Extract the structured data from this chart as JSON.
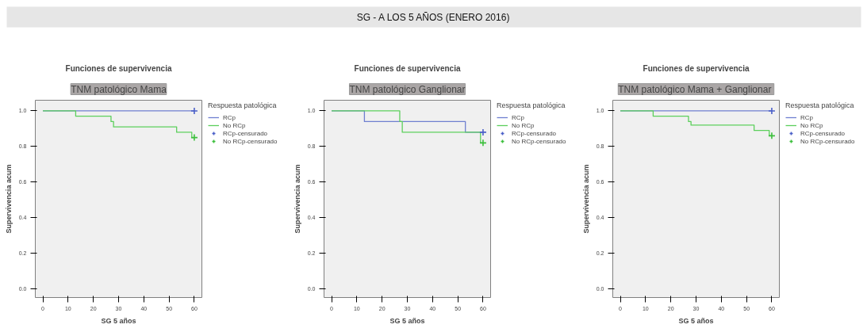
{
  "chart_data": [
    {
      "type": "other",
      "title": "SG - A LOS 5 AÑOS (ENERO 2016)"
    },
    {
      "type": "step",
      "title": "Funciones de supervivencia",
      "subtitle": "TNM patológico Mama",
      "xlabel": "SG 5 años",
      "ylabel": "Supervivencia acum",
      "legend_title": "Respuesta patológica",
      "legend": "right",
      "grid": false,
      "xlim": [
        -3,
        63
      ],
      "ylim": [
        -0.05,
        1.06
      ],
      "xticks": [
        0,
        10,
        20,
        30,
        40,
        50,
        60
      ],
      "yticks": [
        {
          "value": 0,
          "label": "0.0"
        },
        {
          "value": 0.2,
          "label": "0.2"
        },
        {
          "value": 0.4,
          "label": "0.4"
        },
        {
          "value": 0.6,
          "label": "0.6"
        },
        {
          "value": 0.8,
          "label": "0.8"
        },
        {
          "value": 1,
          "label": "1.0"
        }
      ],
      "series": [
        {
          "name": "RCp",
          "color": "#6f7fd0",
          "x": [
            0,
            60
          ],
          "values": [
            1,
            1
          ]
        },
        {
          "name": "No RCp",
          "color": "#5ccf5c",
          "x": [
            0,
            13,
            27,
            28,
            53,
            59,
            60
          ],
          "values": [
            1,
            0.97,
            0.94,
            0.91,
            0.88,
            0.85,
            0.85
          ]
        },
        {
          "name": "RCp-censurado",
          "type": "scatter",
          "marker": "cross",
          "color": "#4a5fc8",
          "x": [
            60
          ],
          "values": [
            1
          ]
        },
        {
          "name": "No RCp-censurado",
          "type": "scatter",
          "marker": "cross",
          "color": "#3cbf3c",
          "x": [
            60
          ],
          "values": [
            0.85
          ]
        }
      ]
    },
    {
      "type": "step",
      "title": "Funciones de supervivencia",
      "subtitle": "TNM patológico Ganglionar",
      "xlabel": "SG 5 años",
      "ylabel": "Supervivencia acum",
      "legend_title": "Respuesta patológica",
      "legend": "right",
      "grid": false,
      "xlim": [
        -3,
        63
      ],
      "ylim": [
        -0.05,
        1.06
      ],
      "xticks": [
        0,
        10,
        20,
        30,
        40,
        50,
        60
      ],
      "yticks": [
        {
          "value": 0,
          "label": "0.0"
        },
        {
          "value": 0.2,
          "label": "0.2"
        },
        {
          "value": 0.4,
          "label": "0.4"
        },
        {
          "value": 0.6,
          "label": "0.6"
        },
        {
          "value": 0.8,
          "label": "0.8"
        },
        {
          "value": 1,
          "label": "1.0"
        }
      ],
      "series": [
        {
          "name": "RCp",
          "color": "#6f7fd0",
          "x": [
            0,
            13,
            53,
            60
          ],
          "values": [
            1,
            0.94,
            0.88,
            0.88
          ]
        },
        {
          "name": "No RCp",
          "color": "#5ccf5c",
          "x": [
            0,
            27,
            28,
            59,
            60
          ],
          "values": [
            1,
            0.94,
            0.88,
            0.82,
            0.82
          ]
        },
        {
          "name": "RCp-censurado",
          "type": "scatter",
          "marker": "cross",
          "color": "#4a5fc8",
          "x": [
            60
          ],
          "values": [
            0.88
          ]
        },
        {
          "name": "No RCp-censurado",
          "type": "scatter",
          "marker": "cross",
          "color": "#3cbf3c",
          "x": [
            60
          ],
          "values": [
            0.82
          ]
        }
      ]
    },
    {
      "type": "step",
      "title": "Funciones de supervivencia",
      "subtitle": "TNM patológico  Mama + Ganglionar",
      "xlabel": "SG 5 años",
      "ylabel": "Supervivencia acum",
      "legend_title": "Respuesta patológica",
      "legend": "right",
      "grid": false,
      "xlim": [
        -3,
        63
      ],
      "ylim": [
        -0.05,
        1.06
      ],
      "xticks": [
        0,
        10,
        20,
        30,
        40,
        50,
        60
      ],
      "yticks": [
        {
          "value": 0,
          "label": "0.0"
        },
        {
          "value": 0.2,
          "label": "0.2"
        },
        {
          "value": 0.4,
          "label": "0.4"
        },
        {
          "value": 0.6,
          "label": "0.6"
        },
        {
          "value": 0.8,
          "label": "0.8"
        },
        {
          "value": 1,
          "label": "1.0"
        }
      ],
      "series": [
        {
          "name": "RCp",
          "color": "#6f7fd0",
          "x": [
            0,
            60
          ],
          "values": [
            1,
            1
          ]
        },
        {
          "name": "No RCp",
          "color": "#5ccf5c",
          "x": [
            0,
            13,
            27,
            28,
            53,
            59,
            60
          ],
          "values": [
            1,
            0.97,
            0.94,
            0.92,
            0.89,
            0.86,
            0.86
          ]
        },
        {
          "name": "RCp-censurado",
          "type": "scatter",
          "marker": "cross",
          "color": "#4a5fc8",
          "x": [
            60
          ],
          "values": [
            1
          ]
        },
        {
          "name": "No RCp-censurado",
          "type": "scatter",
          "marker": "cross",
          "color": "#3cbf3c",
          "x": [
            60
          ],
          "values": [
            0.86
          ]
        }
      ]
    }
  ]
}
